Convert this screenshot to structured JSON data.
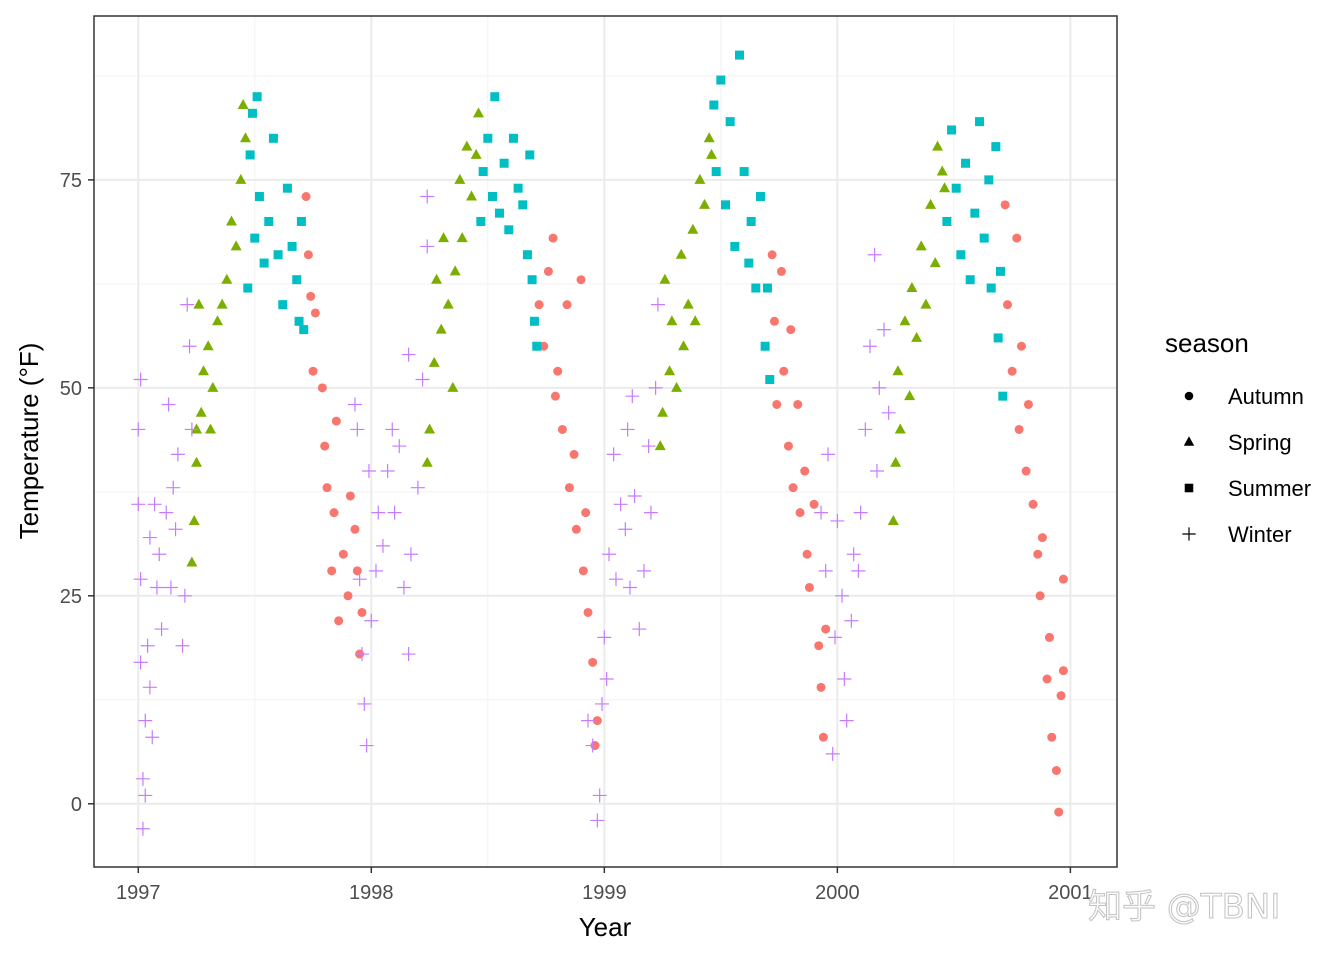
{
  "chart_data": {
    "type": "scatter",
    "xlabel": "Year",
    "ylabel": "Temperature (°F)",
    "xlim": [
      1996.81,
      2001.2
    ],
    "ylim": [
      -7.6,
      94.7
    ],
    "x_ticks": [
      1997,
      1998,
      1999,
      2000,
      2001
    ],
    "x_tick_labels": [
      "1997",
      "1998",
      "1999",
      "2000",
      "2001"
    ],
    "y_ticks": [
      0,
      25,
      50,
      75
    ],
    "y_tick_labels": [
      "0",
      "25",
      "50",
      "75"
    ],
    "grid": true,
    "legend": {
      "title": "season",
      "placement": "right"
    },
    "series": [
      {
        "name": "Autumn",
        "shape": "circle",
        "color": "#F8766D",
        "points": [
          [
            1997.72,
            73
          ],
          [
            1997.73,
            66
          ],
          [
            1997.74,
            61
          ],
          [
            1997.76,
            59
          ],
          [
            1997.75,
            52
          ],
          [
            1997.79,
            50
          ],
          [
            1997.8,
            43
          ],
          [
            1997.81,
            38
          ],
          [
            1997.83,
            28
          ],
          [
            1997.84,
            35
          ],
          [
            1997.85,
            46
          ],
          [
            1997.86,
            22
          ],
          [
            1997.88,
            30
          ],
          [
            1997.9,
            25
          ],
          [
            1997.91,
            37
          ],
          [
            1997.93,
            33
          ],
          [
            1997.94,
            28
          ],
          [
            1997.95,
            18
          ],
          [
            1997.96,
            23
          ],
          [
            1998.72,
            60
          ],
          [
            1998.74,
            55
          ],
          [
            1998.76,
            64
          ],
          [
            1998.78,
            68
          ],
          [
            1998.79,
            49
          ],
          [
            1998.8,
            52
          ],
          [
            1998.82,
            45
          ],
          [
            1998.84,
            60
          ],
          [
            1998.85,
            38
          ],
          [
            1998.87,
            42
          ],
          [
            1998.88,
            33
          ],
          [
            1998.9,
            63
          ],
          [
            1998.91,
            28
          ],
          [
            1998.92,
            35
          ],
          [
            1998.93,
            23
          ],
          [
            1998.95,
            17
          ],
          [
            1998.96,
            7
          ],
          [
            1998.97,
            10
          ],
          [
            1999.72,
            66
          ],
          [
            1999.73,
            58
          ],
          [
            1999.74,
            48
          ],
          [
            1999.76,
            64
          ],
          [
            1999.77,
            52
          ],
          [
            1999.79,
            43
          ],
          [
            1999.8,
            57
          ],
          [
            1999.81,
            38
          ],
          [
            1999.83,
            48
          ],
          [
            1999.84,
            35
          ],
          [
            1999.86,
            40
          ],
          [
            1999.87,
            30
          ],
          [
            1999.88,
            26
          ],
          [
            1999.9,
            36
          ],
          [
            1999.92,
            19
          ],
          [
            1999.93,
            14
          ],
          [
            1999.94,
            8
          ],
          [
            1999.95,
            21
          ],
          [
            2000.72,
            72
          ],
          [
            2000.73,
            60
          ],
          [
            2000.75,
            52
          ],
          [
            2000.77,
            68
          ],
          [
            2000.78,
            45
          ],
          [
            2000.79,
            55
          ],
          [
            2000.81,
            40
          ],
          [
            2000.82,
            48
          ],
          [
            2000.84,
            36
          ],
          [
            2000.86,
            30
          ],
          [
            2000.87,
            25
          ],
          [
            2000.88,
            32
          ],
          [
            2000.9,
            15
          ],
          [
            2000.91,
            20
          ],
          [
            2000.92,
            8
          ],
          [
            2000.94,
            4
          ],
          [
            2000.95,
            -1
          ],
          [
            2000.96,
            13
          ],
          [
            2000.97,
            27
          ],
          [
            2000.97,
            16
          ]
        ]
      },
      {
        "name": "Spring",
        "shape": "triangle",
        "color": "#7CAE00",
        "points": [
          [
            1997.23,
            29
          ],
          [
            1997.24,
            34
          ],
          [
            1997.25,
            41
          ],
          [
            1997.25,
            45
          ],
          [
            1997.26,
            60
          ],
          [
            1997.27,
            47
          ],
          [
            1997.28,
            52
          ],
          [
            1997.3,
            55
          ],
          [
            1997.31,
            45
          ],
          [
            1997.32,
            50
          ],
          [
            1997.34,
            58
          ],
          [
            1997.36,
            60
          ],
          [
            1997.38,
            63
          ],
          [
            1997.4,
            70
          ],
          [
            1997.42,
            67
          ],
          [
            1997.44,
            75
          ],
          [
            1997.45,
            84
          ],
          [
            1997.46,
            80
          ],
          [
            1998.24,
            41
          ],
          [
            1998.25,
            45
          ],
          [
            1998.27,
            53
          ],
          [
            1998.28,
            63
          ],
          [
            1998.3,
            57
          ],
          [
            1998.31,
            68
          ],
          [
            1998.33,
            60
          ],
          [
            1998.35,
            50
          ],
          [
            1998.36,
            64
          ],
          [
            1998.38,
            75
          ],
          [
            1998.39,
            68
          ],
          [
            1998.41,
            79
          ],
          [
            1998.43,
            73
          ],
          [
            1998.45,
            78
          ],
          [
            1998.46,
            83
          ],
          [
            1999.24,
            43
          ],
          [
            1999.25,
            47
          ],
          [
            1999.26,
            63
          ],
          [
            1999.28,
            52
          ],
          [
            1999.29,
            58
          ],
          [
            1999.31,
            50
          ],
          [
            1999.33,
            66
          ],
          [
            1999.34,
            55
          ],
          [
            1999.36,
            60
          ],
          [
            1999.38,
            69
          ],
          [
            1999.39,
            58
          ],
          [
            1999.41,
            75
          ],
          [
            1999.43,
            72
          ],
          [
            1999.45,
            80
          ],
          [
            1999.46,
            78
          ],
          [
            2000.24,
            34
          ],
          [
            2000.25,
            41
          ],
          [
            2000.26,
            52
          ],
          [
            2000.27,
            45
          ],
          [
            2000.29,
            58
          ],
          [
            2000.31,
            49
          ],
          [
            2000.32,
            62
          ],
          [
            2000.34,
            56
          ],
          [
            2000.36,
            67
          ],
          [
            2000.38,
            60
          ],
          [
            2000.4,
            72
          ],
          [
            2000.42,
            65
          ],
          [
            2000.43,
            79
          ],
          [
            2000.45,
            76
          ],
          [
            2000.46,
            74
          ]
        ]
      },
      {
        "name": "Summer",
        "shape": "square",
        "color": "#00BFC4",
        "points": [
          [
            1997.47,
            62
          ],
          [
            1997.48,
            78
          ],
          [
            1997.49,
            83
          ],
          [
            1997.5,
            68
          ],
          [
            1997.51,
            85
          ],
          [
            1997.52,
            73
          ],
          [
            1997.54,
            65
          ],
          [
            1997.56,
            70
          ],
          [
            1997.58,
            80
          ],
          [
            1997.6,
            66
          ],
          [
            1997.62,
            60
          ],
          [
            1997.64,
            74
          ],
          [
            1997.66,
            67
          ],
          [
            1997.68,
            63
          ],
          [
            1997.69,
            58
          ],
          [
            1997.7,
            70
          ],
          [
            1997.71,
            57
          ],
          [
            1998.47,
            70
          ],
          [
            1998.48,
            76
          ],
          [
            1998.5,
            80
          ],
          [
            1998.52,
            73
          ],
          [
            1998.53,
            85
          ],
          [
            1998.55,
            71
          ],
          [
            1998.57,
            77
          ],
          [
            1998.59,
            69
          ],
          [
            1998.61,
            80
          ],
          [
            1998.63,
            74
          ],
          [
            1998.65,
            72
          ],
          [
            1998.67,
            66
          ],
          [
            1998.68,
            78
          ],
          [
            1998.69,
            63
          ],
          [
            1998.7,
            58
          ],
          [
            1998.71,
            55
          ],
          [
            1999.47,
            84
          ],
          [
            1999.48,
            76
          ],
          [
            1999.5,
            87
          ],
          [
            1999.52,
            72
          ],
          [
            1999.54,
            82
          ],
          [
            1999.56,
            67
          ],
          [
            1999.58,
            90
          ],
          [
            1999.6,
            76
          ],
          [
            1999.62,
            65
          ],
          [
            1999.63,
            70
          ],
          [
            1999.65,
            62
          ],
          [
            1999.67,
            73
          ],
          [
            1999.69,
            55
          ],
          [
            1999.7,
            62
          ],
          [
            1999.71,
            51
          ],
          [
            2000.47,
            70
          ],
          [
            2000.49,
            81
          ],
          [
            2000.51,
            74
          ],
          [
            2000.53,
            66
          ],
          [
            2000.55,
            77
          ],
          [
            2000.57,
            63
          ],
          [
            2000.59,
            71
          ],
          [
            2000.61,
            82
          ],
          [
            2000.63,
            68
          ],
          [
            2000.65,
            75
          ],
          [
            2000.66,
            62
          ],
          [
            2000.68,
            79
          ],
          [
            2000.69,
            56
          ],
          [
            2000.7,
            64
          ],
          [
            2000.71,
            49
          ]
        ]
      },
      {
        "name": "Winter",
        "shape": "plus",
        "color": "#C77CFF",
        "points": [
          [
            1997.0,
            45
          ],
          [
            1997.0,
            36
          ],
          [
            1997.01,
            51
          ],
          [
            1997.01,
            27
          ],
          [
            1997.01,
            17
          ],
          [
            1997.02,
            3
          ],
          [
            1997.02,
            -3
          ],
          [
            1997.03,
            1
          ],
          [
            1997.03,
            10
          ],
          [
            1997.04,
            19
          ],
          [
            1997.05,
            32
          ],
          [
            1997.05,
            14
          ],
          [
            1997.06,
            8
          ],
          [
            1997.07,
            36
          ],
          [
            1997.08,
            26
          ],
          [
            1997.09,
            30
          ],
          [
            1997.1,
            21
          ],
          [
            1997.12,
            35
          ],
          [
            1997.13,
            48
          ],
          [
            1997.14,
            26
          ],
          [
            1997.15,
            38
          ],
          [
            1997.16,
            33
          ],
          [
            1997.17,
            42
          ],
          [
            1997.19,
            19
          ],
          [
            1997.2,
            25
          ],
          [
            1997.21,
            60
          ],
          [
            1997.22,
            55
          ],
          [
            1997.23,
            45
          ],
          [
            1997.93,
            48
          ],
          [
            1997.94,
            45
          ],
          [
            1997.95,
            27
          ],
          [
            1997.96,
            18
          ],
          [
            1997.97,
            12
          ],
          [
            1997.98,
            7
          ],
          [
            1997.99,
            40
          ],
          [
            1998.0,
            22
          ],
          [
            1998.02,
            28
          ],
          [
            1998.03,
            35
          ],
          [
            1998.05,
            31
          ],
          [
            1998.07,
            40
          ],
          [
            1998.09,
            45
          ],
          [
            1998.1,
            35
          ],
          [
            1998.12,
            43
          ],
          [
            1998.14,
            26
          ],
          [
            1998.16,
            18
          ],
          [
            1998.17,
            30
          ],
          [
            1998.2,
            38
          ],
          [
            1998.22,
            51
          ],
          [
            1998.24,
            73
          ],
          [
            1998.24,
            67
          ],
          [
            1998.16,
            54
          ],
          [
            1998.93,
            10
          ],
          [
            1998.95,
            7
          ],
          [
            1998.97,
            -2
          ],
          [
            1998.98,
            1
          ],
          [
            1998.99,
            12
          ],
          [
            1999.0,
            20
          ],
          [
            1999.01,
            15
          ],
          [
            1999.02,
            30
          ],
          [
            1999.04,
            42
          ],
          [
            1999.05,
            27
          ],
          [
            1999.07,
            36
          ],
          [
            1999.09,
            33
          ],
          [
            1999.1,
            45
          ],
          [
            1999.11,
            26
          ],
          [
            1999.13,
            37
          ],
          [
            1999.15,
            21
          ],
          [
            1999.17,
            28
          ],
          [
            1999.19,
            43
          ],
          [
            1999.2,
            35
          ],
          [
            1999.22,
            50
          ],
          [
            1999.23,
            60
          ],
          [
            1999.12,
            49
          ],
          [
            1999.93,
            35
          ],
          [
            1999.95,
            28
          ],
          [
            1999.96,
            42
          ],
          [
            1999.98,
            6
          ],
          [
            1999.99,
            20
          ],
          [
            2000.0,
            34
          ],
          [
            2000.02,
            25
          ],
          [
            2000.03,
            15
          ],
          [
            2000.04,
            10
          ],
          [
            2000.06,
            22
          ],
          [
            2000.07,
            30
          ],
          [
            2000.09,
            28
          ],
          [
            2000.1,
            35
          ],
          [
            2000.12,
            45
          ],
          [
            2000.14,
            55
          ],
          [
            2000.16,
            66
          ],
          [
            2000.17,
            40
          ],
          [
            2000.18,
            50
          ],
          [
            2000.2,
            57
          ],
          [
            2000.22,
            47
          ]
        ]
      }
    ]
  },
  "watermark": "知乎 @TBNI"
}
